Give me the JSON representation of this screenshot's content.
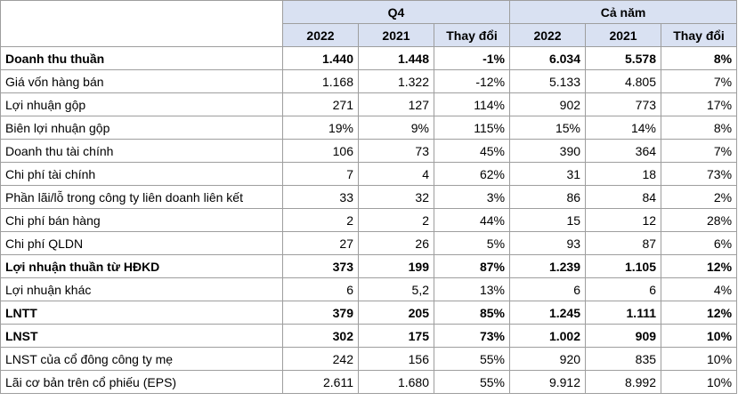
{
  "header": {
    "group_q4": "Q4",
    "group_year": "Cả năm",
    "columns": [
      "2022",
      "2021",
      "Thay đổi",
      "2022",
      "2021",
      "Thay đổi"
    ]
  },
  "rows": [
    {
      "label": "Doanh thu thuần",
      "bold": true,
      "values": [
        "1.440",
        "1.448",
        "-1%",
        "6.034",
        "5.578",
        "8%"
      ]
    },
    {
      "label": "Giá vốn hàng bán",
      "bold": false,
      "values": [
        "1.168",
        "1.322",
        "-12%",
        "5.133",
        "4.805",
        "7%"
      ]
    },
    {
      "label": "Lợi nhuận gộp",
      "bold": false,
      "values": [
        "271",
        "127",
        "114%",
        "902",
        "773",
        "17%"
      ]
    },
    {
      "label": "Biên lợi nhuận gộp",
      "bold": false,
      "values": [
        "19%",
        "9%",
        "115%",
        "15%",
        "14%",
        "8%"
      ]
    },
    {
      "label": "Doanh thu tài chính",
      "bold": false,
      "values": [
        "106",
        "73",
        "45%",
        "390",
        "364",
        "7%"
      ]
    },
    {
      "label": "Chi phí tài chính",
      "bold": false,
      "values": [
        "7",
        "4",
        "62%",
        "31",
        "18",
        "73%"
      ]
    },
    {
      "label": "Phần lãi/lỗ trong công ty liên doanh liên kết",
      "bold": false,
      "values": [
        "33",
        "32",
        "3%",
        "86",
        "84",
        "2%"
      ]
    },
    {
      "label": "Chi phí bán hàng",
      "bold": false,
      "values": [
        "2",
        "2",
        "44%",
        "15",
        "12",
        "28%"
      ]
    },
    {
      "label": "Chi phí QLDN",
      "bold": false,
      "values": [
        "27",
        "26",
        "5%",
        "93",
        "87",
        "6%"
      ]
    },
    {
      "label": "Lợi nhuận thuần từ HĐKD",
      "bold": true,
      "values": [
        "373",
        "199",
        "87%",
        "1.239",
        "1.105",
        "12%"
      ]
    },
    {
      "label": "Lợi nhuận khác",
      "bold": false,
      "values": [
        "6",
        "5,2",
        "13%",
        "6",
        "6",
        "4%"
      ]
    },
    {
      "label": "LNTT",
      "bold": true,
      "values": [
        "379",
        "205",
        "85%",
        "1.245",
        "1.111",
        "12%"
      ]
    },
    {
      "label": "LNST",
      "bold": true,
      "values": [
        "302",
        "175",
        "73%",
        "1.002",
        "909",
        "10%"
      ]
    },
    {
      "label": "LNST của cổ đông công ty mẹ",
      "bold": false,
      "values": [
        "242",
        "156",
        "55%",
        "920",
        "835",
        "10%"
      ]
    },
    {
      "label": "Lãi cơ bản trên cổ phiếu (EPS)",
      "bold": false,
      "values": [
        "2.611",
        "1.680",
        "55%",
        "9.912",
        "8.992",
        "10%"
      ]
    }
  ]
}
